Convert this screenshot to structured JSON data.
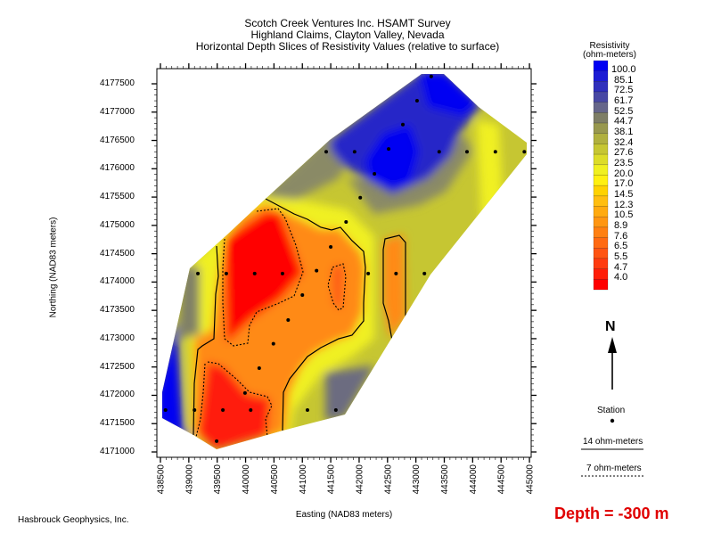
{
  "title": {
    "line1": "Scotch Creek Ventures Inc. HSAMT Survey",
    "line2": "Highland Claims, Clayton Valley, Nevada",
    "line3": "Horizontal Depth Slices of Resistivity Values (relative to surface)"
  },
  "chart_data": {
    "type": "heatmap",
    "xlabel": "Easting (NAD83 meters)",
    "ylabel": "Northing (NAD83 meters)",
    "xlim": [
      438500,
      445000
    ],
    "ylim": [
      4171000,
      4177500
    ],
    "x_ticks": [
      "438500",
      "439000",
      "439500",
      "440000",
      "440500",
      "441000",
      "441500",
      "442000",
      "442500",
      "443000",
      "443500",
      "444000",
      "444500",
      "445000"
    ],
    "y_ticks": [
      "4177500",
      "4177000",
      "4176500",
      "4176000",
      "4175500",
      "4175000",
      "4174500",
      "4174000",
      "4173500",
      "4173000",
      "4172500",
      "4172000",
      "4171500",
      "4171000"
    ],
    "colorbar": {
      "title_line1": "Resistivity",
      "title_line2": "(ohm-meters)",
      "levels": [
        "100.0",
        "85.1",
        "72.5",
        "61.7",
        "52.5",
        "44.7",
        "38.1",
        "32.4",
        "27.6",
        "23.5",
        "20.0",
        "17.0",
        "14.5",
        "12.3",
        "10.5",
        "8.9",
        "7.6",
        "6.5",
        "5.5",
        "4.7",
        "4.0"
      ],
      "colors": [
        "#0000f2",
        "#1c1cd4",
        "#3030bc",
        "#4848a4",
        "#66668a",
        "#7e7e66",
        "#98984e",
        "#b0b03e",
        "#c6c632",
        "#dcdc28",
        "#f0f020",
        "#fff010",
        "#ffd200",
        "#ffbe10",
        "#ffaa10",
        "#ff9612",
        "#ff8012",
        "#ff6a12",
        "#ff5412",
        "#ff3c10",
        "#ff1e08",
        "#ff0000"
      ]
    },
    "contours": [
      {
        "label": "14 ohm-meters",
        "style": "solid"
      },
      {
        "label": "7 ohm-meters",
        "style": "dotted"
      }
    ],
    "stations": [
      [
        443270,
        4177630
      ],
      [
        443020,
        4177200
      ],
      [
        442770,
        4176780
      ],
      [
        441420,
        4176300
      ],
      [
        441920,
        4176300
      ],
      [
        442520,
        4176350
      ],
      [
        443410,
        4176300
      ],
      [
        443900,
        4176300
      ],
      [
        444400,
        4176300
      ],
      [
        444910,
        4176300
      ],
      [
        442270,
        4175910
      ],
      [
        442020,
        4175490
      ],
      [
        441770,
        4175060
      ],
      [
        441500,
        4174620
      ],
      [
        439160,
        4174150
      ],
      [
        439660,
        4174150
      ],
      [
        440160,
        4174150
      ],
      [
        440650,
        4174150
      ],
      [
        441250,
        4174200
      ],
      [
        442160,
        4174150
      ],
      [
        442650,
        4174150
      ],
      [
        443150,
        4174150
      ],
      [
        441000,
        4173770
      ],
      [
        440750,
        4173330
      ],
      [
        440490,
        4172910
      ],
      [
        440240,
        4172480
      ],
      [
        439990,
        4172040
      ],
      [
        438590,
        4171740
      ],
      [
        439100,
        4171740
      ],
      [
        439600,
        4171740
      ],
      [
        440090,
        4171740
      ],
      [
        441090,
        4171740
      ],
      [
        441590,
        4171740
      ],
      [
        439490,
        4171190
      ]
    ]
  },
  "legend": {
    "north_label": "N",
    "station_label": "Station",
    "contour_14_label": "14 ohm-meters",
    "contour_7_label": "7 ohm-meters"
  },
  "depth_label": "Depth = -300 m",
  "credit": "Hasbrouck Geophysics, Inc."
}
